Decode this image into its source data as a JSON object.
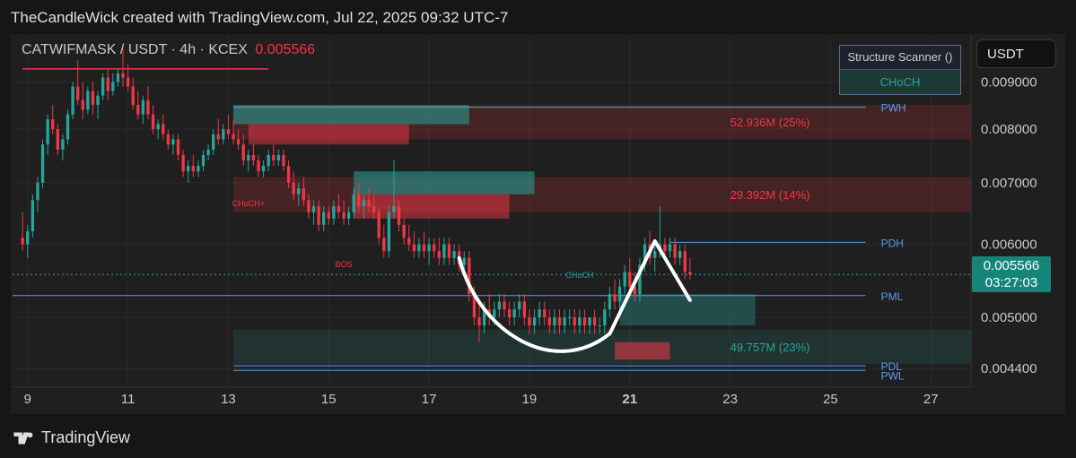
{
  "header": {
    "attribution": "TheCandleWick created with TradingView.com, Jul 22, 2025 09:32 UTC-7"
  },
  "symbol": {
    "label": "CATWIFMASK / USDT · 4h · KCEX",
    "price": "0.005566"
  },
  "scanner": {
    "title": "Structure Scanner ()",
    "value": "CHoCH"
  },
  "currency_button": "USDT",
  "price_tag": {
    "price": "0.005566",
    "countdown": "03:27:03"
  },
  "footer": {
    "brand": "TradingView",
    "logo_icon": "tradingview-logo-icon"
  },
  "colors": {
    "up": "#26a69a",
    "down": "#f23645",
    "level": "#5b9cf6",
    "annotation": "#ffffff"
  },
  "chart_data": {
    "type": "candlestick",
    "title": "",
    "xlabel": "",
    "ylabel": "",
    "x_ticks": [
      "9",
      "11",
      "13",
      "15",
      "17",
      "19",
      "21",
      "23",
      "25",
      "27"
    ],
    "x_tick_values": [
      9,
      11,
      13,
      15,
      17,
      19,
      21,
      23,
      25,
      27
    ],
    "x_tick_bold": "21",
    "xlim": [
      8.7,
      27.8
    ],
    "y_ticks": [
      "0.009000",
      "0.008000",
      "0.007000",
      "0.006000",
      "0.005000",
      "0.004400"
    ],
    "y_tick_values": [
      0.009,
      0.008,
      0.007,
      0.006,
      0.005,
      0.0044
    ],
    "ylim": [
      0.0042,
      0.0101
    ],
    "scale": "log",
    "grid": true,
    "last_price": 0.005566,
    "levels": [
      {
        "label": "PWH",
        "value": 0.00845
      },
      {
        "label": "PDH",
        "value": 0.00603
      },
      {
        "label": "PML",
        "value": 0.00528
      },
      {
        "label": "PDL",
        "value": 0.00443
      },
      {
        "label": "PWL",
        "value": 0.00438
      }
    ],
    "volume_zones": [
      {
        "label": "52.936M (25%)",
        "type": "supply",
        "top": 0.0085,
        "bottom": 0.0078
      },
      {
        "label": "29.392M (14%)",
        "type": "supply",
        "top": 0.0071,
        "bottom": 0.0065
      },
      {
        "label": "49.757M (23%)",
        "type": "demand",
        "top": 0.00485,
        "bottom": 0.00445
      }
    ],
    "structure_labels": [
      {
        "label": "CHoCH+",
        "x": 13.4,
        "y": 0.0066
      },
      {
        "label": "BOS",
        "x": 15.3,
        "y": 0.00567
      },
      {
        "label": "CHoCH",
        "x": 20.0,
        "y": 0.00552
      }
    ],
    "candles": [
      [
        8.9,
        0.0061,
        0.0065,
        0.0059,
        0.006
      ],
      [
        9.0,
        0.006,
        0.0063,
        0.0058,
        0.0062
      ],
      [
        9.1,
        0.0062,
        0.0068,
        0.0061,
        0.0067
      ],
      [
        9.2,
        0.0067,
        0.0071,
        0.0065,
        0.007
      ],
      [
        9.3,
        0.007,
        0.0078,
        0.0069,
        0.0077
      ],
      [
        9.4,
        0.0077,
        0.0083,
        0.0075,
        0.0082
      ],
      [
        9.5,
        0.0082,
        0.0085,
        0.0079,
        0.008
      ],
      [
        9.6,
        0.008,
        0.0081,
        0.0075,
        0.0076
      ],
      [
        9.7,
        0.0076,
        0.0079,
        0.0074,
        0.0078
      ],
      [
        9.8,
        0.0078,
        0.0084,
        0.0077,
        0.0083
      ],
      [
        9.9,
        0.0083,
        0.009,
        0.0082,
        0.0089
      ],
      [
        10.0,
        0.0089,
        0.0095,
        0.0085,
        0.0086
      ],
      [
        10.1,
        0.0086,
        0.009,
        0.0082,
        0.0084
      ],
      [
        10.2,
        0.0084,
        0.0089,
        0.0083,
        0.0088
      ],
      [
        10.3,
        0.0088,
        0.009,
        0.0083,
        0.0085
      ],
      [
        10.4,
        0.0085,
        0.0088,
        0.0082,
        0.0087
      ],
      [
        10.5,
        0.0087,
        0.0092,
        0.0086,
        0.0091
      ],
      [
        10.6,
        0.0091,
        0.0093,
        0.0086,
        0.0088
      ],
      [
        10.7,
        0.0088,
        0.0092,
        0.0087,
        0.009
      ],
      [
        10.8,
        0.009,
        0.0093,
        0.0089,
        0.0092
      ],
      [
        10.9,
        0.0092,
        0.0098,
        0.0089,
        0.0091
      ],
      [
        11.0,
        0.0091,
        0.0094,
        0.0088,
        0.0089
      ],
      [
        11.1,
        0.0089,
        0.0091,
        0.0084,
        0.0085
      ],
      [
        11.2,
        0.0085,
        0.0088,
        0.0082,
        0.0083
      ],
      [
        11.3,
        0.0083,
        0.0087,
        0.0081,
        0.0086
      ],
      [
        11.4,
        0.0086,
        0.0089,
        0.0082,
        0.0083
      ],
      [
        11.5,
        0.0083,
        0.0085,
        0.0079,
        0.008
      ],
      [
        11.6,
        0.008,
        0.0082,
        0.0078,
        0.0081
      ],
      [
        11.7,
        0.0081,
        0.0083,
        0.0078,
        0.0079
      ],
      [
        11.8,
        0.0079,
        0.008,
        0.0076,
        0.0077
      ],
      [
        11.9,
        0.0077,
        0.0079,
        0.0075,
        0.0078
      ],
      [
        12.0,
        0.0078,
        0.0079,
        0.0074,
        0.0075
      ],
      [
        12.1,
        0.0075,
        0.0076,
        0.0071,
        0.0072
      ],
      [
        12.2,
        0.0072,
        0.0074,
        0.007,
        0.0073
      ],
      [
        12.3,
        0.0073,
        0.0075,
        0.0071,
        0.0072
      ],
      [
        12.4,
        0.0072,
        0.0074,
        0.0071,
        0.0073
      ],
      [
        12.5,
        0.0073,
        0.0076,
        0.0072,
        0.0075
      ],
      [
        12.6,
        0.0075,
        0.0077,
        0.0074,
        0.0076
      ],
      [
        12.7,
        0.0076,
        0.008,
        0.0075,
        0.0079
      ],
      [
        12.8,
        0.0079,
        0.0082,
        0.0077,
        0.0078
      ],
      [
        12.9,
        0.0078,
        0.0081,
        0.0077,
        0.008
      ],
      [
        13.0,
        0.008,
        0.0083,
        0.0078,
        0.0079
      ],
      [
        13.1,
        0.0079,
        0.0082,
        0.0077,
        0.0078
      ],
      [
        13.2,
        0.0078,
        0.008,
        0.0076,
        0.0077
      ],
      [
        13.3,
        0.0077,
        0.0079,
        0.0073,
        0.0074
      ],
      [
        13.4,
        0.0074,
        0.0076,
        0.0072,
        0.0075
      ],
      [
        13.5,
        0.0075,
        0.0077,
        0.0073,
        0.0074
      ],
      [
        13.6,
        0.0074,
        0.0075,
        0.0071,
        0.0072
      ],
      [
        13.7,
        0.0072,
        0.0074,
        0.0071,
        0.0073
      ],
      [
        13.8,
        0.0073,
        0.0076,
        0.0072,
        0.0075
      ],
      [
        13.9,
        0.0075,
        0.0077,
        0.0073,
        0.0074
      ],
      [
        14.0,
        0.0074,
        0.0076,
        0.0073,
        0.0075
      ],
      [
        14.1,
        0.0075,
        0.0076,
        0.0072,
        0.0073
      ],
      [
        14.2,
        0.0073,
        0.0074,
        0.0069,
        0.007
      ],
      [
        14.3,
        0.007,
        0.0072,
        0.0067,
        0.0068
      ],
      [
        14.4,
        0.0068,
        0.007,
        0.0066,
        0.0069
      ],
      [
        14.5,
        0.0069,
        0.0071,
        0.0066,
        0.0067
      ],
      [
        14.6,
        0.0067,
        0.0068,
        0.0064,
        0.0065
      ],
      [
        14.7,
        0.0065,
        0.0067,
        0.0063,
        0.0066
      ],
      [
        14.8,
        0.0066,
        0.0067,
        0.0062,
        0.0063
      ],
      [
        14.9,
        0.0063,
        0.0066,
        0.0062,
        0.0065
      ],
      [
        15.0,
        0.0065,
        0.0066,
        0.0063,
        0.0064
      ],
      [
        15.1,
        0.0064,
        0.0067,
        0.0063,
        0.0066
      ],
      [
        15.2,
        0.0066,
        0.0068,
        0.0064,
        0.0065
      ],
      [
        15.3,
        0.0065,
        0.0067,
        0.0063,
        0.0064
      ],
      [
        15.4,
        0.0064,
        0.0066,
        0.0063,
        0.0065
      ],
      [
        15.5,
        0.0065,
        0.0069,
        0.0064,
        0.0068
      ],
      [
        15.6,
        0.0068,
        0.007,
        0.0065,
        0.0066
      ],
      [
        15.7,
        0.0066,
        0.0068,
        0.0064,
        0.0067
      ],
      [
        15.8,
        0.0067,
        0.0069,
        0.0065,
        0.0066
      ],
      [
        15.9,
        0.0066,
        0.0068,
        0.0064,
        0.0065
      ],
      [
        16.0,
        0.0065,
        0.0066,
        0.006,
        0.0061
      ],
      [
        16.1,
        0.0061,
        0.0063,
        0.0058,
        0.0059
      ],
      [
        16.2,
        0.0059,
        0.0066,
        0.0058,
        0.0065
      ],
      [
        16.3,
        0.0065,
        0.0074,
        0.0064,
        0.0066
      ],
      [
        16.4,
        0.0066,
        0.0067,
        0.0062,
        0.0063
      ],
      [
        16.5,
        0.0063,
        0.0064,
        0.006,
        0.0061
      ],
      [
        16.6,
        0.0061,
        0.0063,
        0.0059,
        0.006
      ],
      [
        16.7,
        0.006,
        0.0062,
        0.0058,
        0.0059
      ],
      [
        16.8,
        0.0059,
        0.0061,
        0.0058,
        0.006
      ],
      [
        16.9,
        0.006,
        0.0062,
        0.0058,
        0.0059
      ],
      [
        17.0,
        0.0059,
        0.0061,
        0.0057,
        0.006
      ],
      [
        17.1,
        0.006,
        0.0061,
        0.0058,
        0.0059
      ],
      [
        17.2,
        0.0059,
        0.0061,
        0.0057,
        0.0058
      ],
      [
        17.3,
        0.0058,
        0.0061,
        0.0057,
        0.006
      ],
      [
        17.4,
        0.006,
        0.0061,
        0.0057,
        0.0058
      ],
      [
        17.5,
        0.0058,
        0.006,
        0.0057,
        0.0059
      ],
      [
        17.6,
        0.0059,
        0.006,
        0.0056,
        0.0057
      ],
      [
        17.7,
        0.0057,
        0.0059,
        0.0056,
        0.0058
      ],
      [
        17.8,
        0.0058,
        0.0059,
        0.0052,
        0.0053
      ],
      [
        17.9,
        0.0053,
        0.0054,
        0.0049,
        0.005
      ],
      [
        18.0,
        0.005,
        0.0052,
        0.0047,
        0.0049
      ],
      [
        18.1,
        0.0049,
        0.0052,
        0.0048,
        0.0051
      ],
      [
        18.2,
        0.0051,
        0.0053,
        0.0049,
        0.005
      ],
      [
        18.3,
        0.005,
        0.0052,
        0.0049,
        0.0051
      ],
      [
        18.4,
        0.0051,
        0.0053,
        0.005,
        0.0052
      ],
      [
        18.5,
        0.0052,
        0.0053,
        0.005,
        0.0051
      ],
      [
        18.6,
        0.0051,
        0.0052,
        0.0049,
        0.005
      ],
      [
        18.7,
        0.005,
        0.0052,
        0.0049,
        0.0051
      ],
      [
        18.8,
        0.0051,
        0.0053,
        0.005,
        0.0052
      ],
      [
        18.9,
        0.0052,
        0.0053,
        0.0049,
        0.005
      ],
      [
        19.0,
        0.005,
        0.0051,
        0.0048,
        0.0049
      ],
      [
        19.1,
        0.0049,
        0.0051,
        0.0048,
        0.005
      ],
      [
        19.2,
        0.005,
        0.0052,
        0.0049,
        0.0051
      ],
      [
        19.3,
        0.0051,
        0.0052,
        0.0049,
        0.005
      ],
      [
        19.4,
        0.005,
        0.0051,
        0.0048,
        0.0049
      ],
      [
        19.5,
        0.0049,
        0.0051,
        0.0048,
        0.005
      ],
      [
        19.6,
        0.005,
        0.0051,
        0.0048,
        0.0049
      ],
      [
        19.7,
        0.0049,
        0.0051,
        0.0048,
        0.005
      ],
      [
        19.8,
        0.005,
        0.0051,
        0.0049,
        0.005
      ],
      [
        19.9,
        0.005,
        0.0051,
        0.0048,
        0.0049
      ],
      [
        20.0,
        0.0049,
        0.0051,
        0.0048,
        0.005
      ],
      [
        20.1,
        0.005,
        0.0051,
        0.0048,
        0.0049
      ],
      [
        20.2,
        0.0049,
        0.005,
        0.0048,
        0.005
      ],
      [
        20.3,
        0.005,
        0.0051,
        0.0048,
        0.0049
      ],
      [
        20.4,
        0.0049,
        0.005,
        0.0048,
        0.0049
      ],
      [
        20.5,
        0.0049,
        0.0052,
        0.0048,
        0.0051
      ],
      [
        20.6,
        0.0051,
        0.0054,
        0.005,
        0.0053
      ],
      [
        20.7,
        0.0053,
        0.0055,
        0.0051,
        0.0052
      ],
      [
        20.8,
        0.0052,
        0.0055,
        0.0051,
        0.0054
      ],
      [
        20.9,
        0.0054,
        0.0057,
        0.0053,
        0.0056
      ],
      [
        21.0,
        0.0056,
        0.0058,
        0.0053,
        0.0054
      ],
      [
        21.1,
        0.0054,
        0.0056,
        0.0052,
        0.0053
      ],
      [
        21.2,
        0.0053,
        0.0058,
        0.0052,
        0.0057
      ],
      [
        21.3,
        0.0057,
        0.0061,
        0.0056,
        0.006
      ],
      [
        21.4,
        0.006,
        0.0062,
        0.0057,
        0.0058
      ],
      [
        21.5,
        0.0058,
        0.006,
        0.0056,
        0.0059
      ],
      [
        21.6,
        0.0059,
        0.0066,
        0.0058,
        0.006
      ],
      [
        21.7,
        0.006,
        0.0061,
        0.0058,
        0.0059
      ],
      [
        21.8,
        0.0059,
        0.0061,
        0.0058,
        0.006
      ],
      [
        21.9,
        0.006,
        0.0061,
        0.0057,
        0.0058
      ],
      [
        22.0,
        0.0058,
        0.006,
        0.0057,
        0.0059
      ],
      [
        22.1,
        0.0059,
        0.006,
        0.0055,
        0.0056
      ],
      [
        22.2,
        0.0056,
        0.0058,
        0.0055,
        0.005566
      ]
    ]
  }
}
